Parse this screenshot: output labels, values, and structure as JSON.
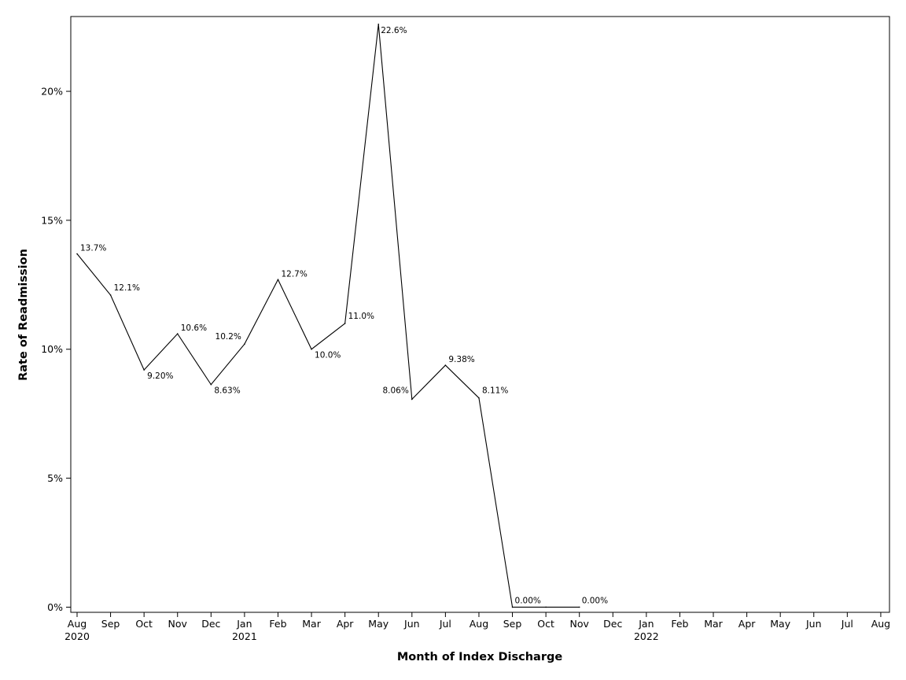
{
  "chart_data": {
    "type": "line",
    "title": "",
    "xlabel": "Month of Index Discharge",
    "ylabel": "Rate of Readmission",
    "x_ticks": [
      {
        "month": "Aug",
        "year": "2020"
      },
      {
        "month": "Sep",
        "year": ""
      },
      {
        "month": "Oct",
        "year": ""
      },
      {
        "month": "Nov",
        "year": ""
      },
      {
        "month": "Dec",
        "year": ""
      },
      {
        "month": "Jan",
        "year": "2021"
      },
      {
        "month": "Feb",
        "year": ""
      },
      {
        "month": "Mar",
        "year": ""
      },
      {
        "month": "Apr",
        "year": ""
      },
      {
        "month": "May",
        "year": ""
      },
      {
        "month": "Jun",
        "year": ""
      },
      {
        "month": "Jul",
        "year": ""
      },
      {
        "month": "Aug",
        "year": ""
      },
      {
        "month": "Sep",
        "year": ""
      },
      {
        "month": "Oct",
        "year": ""
      },
      {
        "month": "Nov",
        "year": ""
      },
      {
        "month": "Dec",
        "year": ""
      },
      {
        "month": "Jan",
        "year": "2022"
      },
      {
        "month": "Feb",
        "year": ""
      },
      {
        "month": "Mar",
        "year": ""
      },
      {
        "month": "Apr",
        "year": ""
      },
      {
        "month": "May",
        "year": ""
      },
      {
        "month": "Jun",
        "year": ""
      },
      {
        "month": "Jul",
        "year": ""
      },
      {
        "month": "Aug",
        "year": ""
      }
    ],
    "y_ticks": [
      {
        "value": 0,
        "label": "0%"
      },
      {
        "value": 5,
        "label": "5%"
      },
      {
        "value": 10,
        "label": "10%"
      },
      {
        "value": 15,
        "label": "15%"
      },
      {
        "value": 20,
        "label": "20%"
      }
    ],
    "ylim": [
      -0.2,
      22.9
    ],
    "grid": false,
    "series": [
      {
        "points": [
          {
            "x": "2020-08",
            "y": 13.7,
            "label": "13.7%"
          },
          {
            "x": "2020-09",
            "y": 12.1,
            "label": "12.1%"
          },
          {
            "x": "2020-10",
            "y": 9.2,
            "label": "9.20%"
          },
          {
            "x": "2020-11",
            "y": 10.6,
            "label": "10.6%"
          },
          {
            "x": "2020-12",
            "y": 8.63,
            "label": "8.63%"
          },
          {
            "x": "2021-01",
            "y": 10.2,
            "label": "10.2%"
          },
          {
            "x": "2021-02",
            "y": 12.7,
            "label": "12.7%"
          },
          {
            "x": "2021-03",
            "y": 10.0,
            "label": "10.0%"
          },
          {
            "x": "2021-04",
            "y": 11.0,
            "label": "11.0%"
          },
          {
            "x": "2021-05",
            "y": 22.6,
            "label": "22.6%"
          },
          {
            "x": "2021-06",
            "y": 8.06,
            "label": "8.06%"
          },
          {
            "x": "2021-07",
            "y": 9.38,
            "label": "9.38%"
          },
          {
            "x": "2021-08",
            "y": 8.11,
            "label": "8.11%"
          },
          {
            "x": "2021-09",
            "y": 0.0,
            "label": "0.00%"
          },
          {
            "x": "2021-10",
            "y": 0.0,
            "label": ""
          },
          {
            "x": "2021-11",
            "y": 0.0,
            "label": "0.00%"
          }
        ]
      }
    ],
    "colors": {
      "line": "#000000",
      "frame": "#000000",
      "background": "#ffffff"
    }
  }
}
